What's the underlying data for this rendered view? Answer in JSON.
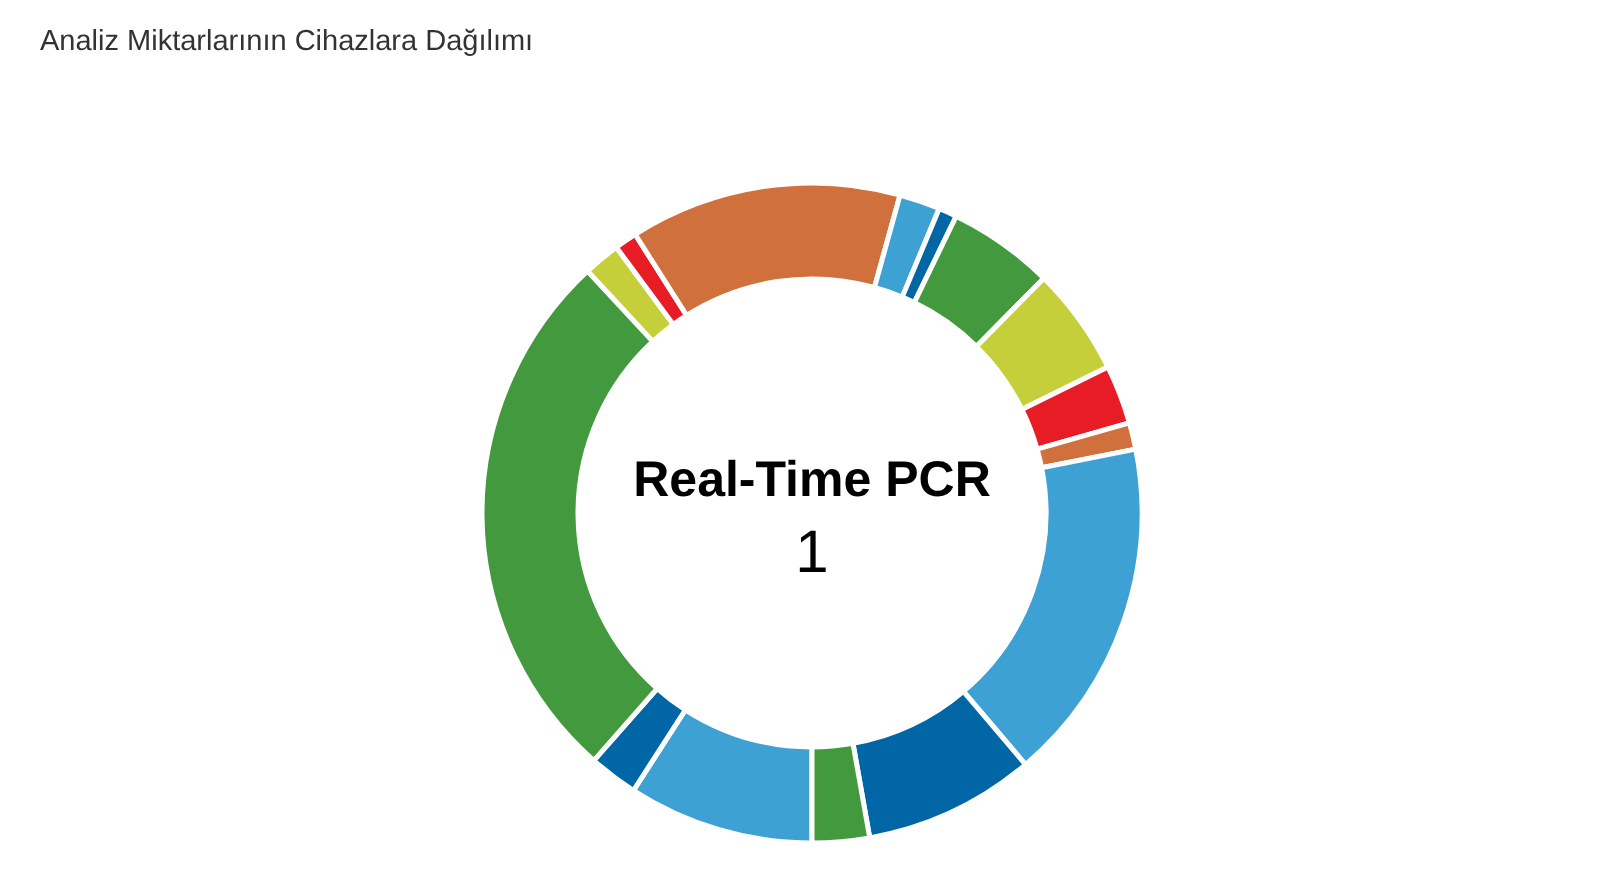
{
  "chart_data": {
    "type": "donut",
    "title": "Analiz Miktarlarının Cihazlara Dağılımı",
    "categories": [
      null,
      null,
      null,
      null,
      null,
      null,
      null,
      null,
      null,
      null,
      null,
      null,
      null,
      null,
      null
    ],
    "values": [
      9.1,
      2.4,
      26.6,
      1.8,
      1.1,
      13.3,
      2.0,
      0.9,
      5.2,
      5.3,
      2.9,
      1.3,
      16.9,
      8.4,
      2.8
    ],
    "colors": [
      "#3ea1d3",
      "#0066a6",
      "#439a3e",
      "#c5cf3a",
      "#e81c24",
      "#d0703c",
      "#3ea1d3",
      "#0066a6",
      "#439a3e",
      "#c5cf3a",
      "#e81c24",
      "#d0703c",
      "#3ea1d3",
      "#0066a6",
      "#439a3e"
    ],
    "annotations": [
      "Real-Time PCR",
      "1"
    ]
  }
}
